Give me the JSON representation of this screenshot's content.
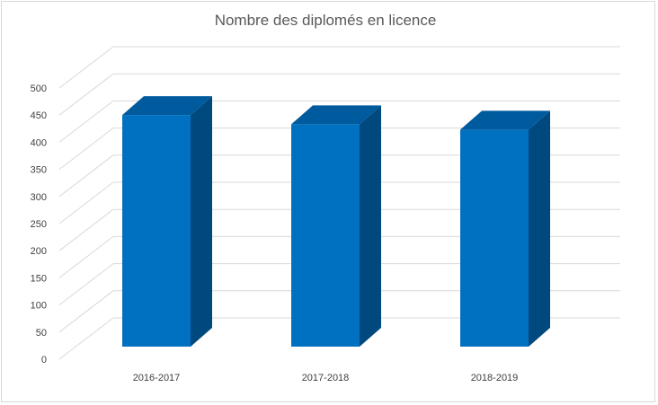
{
  "chart_data": {
    "type": "bar",
    "title": "Nombre des diplomés en licence",
    "xlabel": "",
    "ylabel": "",
    "categories": [
      "2016-2017",
      "2017-2018",
      "2018-2019"
    ],
    "series": [
      {
        "values": [
          470,
          453,
          443
        ]
      }
    ],
    "ylim": [
      0,
      500
    ],
    "yticks": [
      0,
      50,
      100,
      150,
      200,
      250,
      300,
      350,
      400,
      450,
      500
    ],
    "grid": true,
    "legend": "none",
    "style": "3d-column",
    "colors": {
      "front": "#0070C0",
      "top": "#005A9E",
      "side": "#00497F"
    }
  }
}
